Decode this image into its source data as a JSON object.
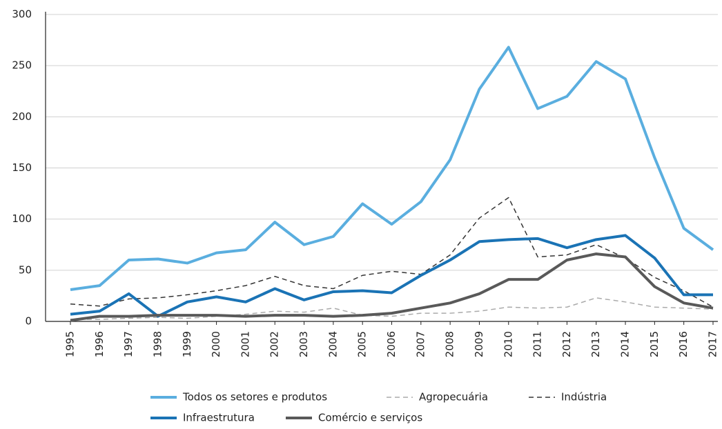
{
  "chart_data": {
    "type": "line",
    "categories": [
      "1995",
      "1996",
      "1997",
      "1998",
      "1999",
      "2000",
      "2001",
      "2002",
      "2003",
      "2004",
      "2005",
      "2006",
      "2007",
      "2008",
      "2009",
      "2010",
      "2011",
      "2012",
      "2013",
      "2014",
      "2015",
      "2016",
      "2017"
    ],
    "series": [
      {
        "name": "Todos os setores e produtos",
        "color": "#5aaedf",
        "dash": "solid",
        "width": 4,
        "values": [
          31,
          35,
          60,
          61,
          57,
          67,
          70,
          97,
          75,
          83,
          115,
          95,
          117,
          158,
          227,
          268,
          208,
          220,
          254,
          237,
          160,
          91,
          70
        ]
      },
      {
        "name": "Agropecuária",
        "color": "#aaaaaa",
        "dash": "dashed",
        "width": 1.5,
        "values": [
          2,
          2,
          3,
          4,
          3,
          5,
          7,
          10,
          9,
          13,
          6,
          5,
          8,
          8,
          10,
          14,
          13,
          14,
          23,
          19,
          14,
          13,
          12
        ]
      },
      {
        "name": "Indústria",
        "color": "#333333",
        "dash": "dashed",
        "width": 1.5,
        "values": [
          17,
          15,
          22,
          23,
          26,
          30,
          35,
          44,
          35,
          32,
          45,
          49,
          46,
          65,
          101,
          121,
          63,
          65,
          75,
          62,
          43,
          30,
          14
        ]
      },
      {
        "name": "Infraestrutura",
        "color": "#1a73b5",
        "dash": "solid",
        "width": 4,
        "values": [
          7,
          10,
          27,
          5,
          19,
          24,
          19,
          32,
          21,
          29,
          30,
          28,
          45,
          60,
          78,
          80,
          81,
          72,
          80,
          84,
          62,
          26,
          26
        ]
      },
      {
        "name": "Comércio e serviços",
        "color": "#595959",
        "dash": "solid",
        "width": 4,
        "values": [
          1,
          5,
          5,
          6,
          6,
          6,
          5,
          6,
          6,
          5,
          6,
          8,
          13,
          18,
          27,
          41,
          41,
          60,
          66,
          63,
          34,
          18,
          13
        ]
      }
    ],
    "ylim": [
      0,
      300
    ],
    "yticks": [
      0,
      50,
      100,
      150,
      200,
      250,
      300
    ],
    "grid": true,
    "legend": "bottom"
  }
}
